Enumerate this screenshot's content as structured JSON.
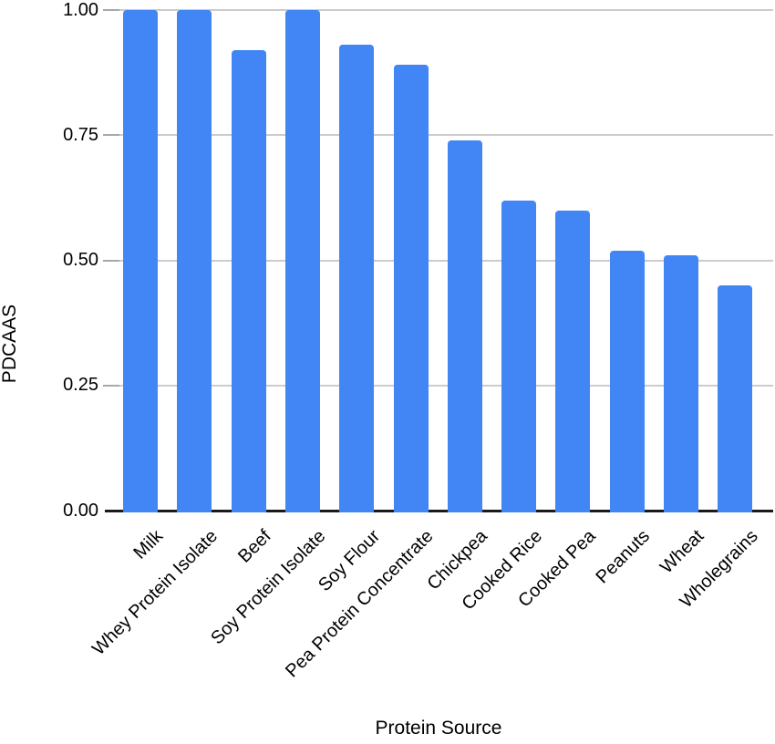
{
  "figure": {
    "background": "#ffffff"
  },
  "chart_data": {
    "type": "bar",
    "title": "",
    "xlabel": "Protein Source",
    "ylabel": "PDCAAS",
    "categories": [
      "Milk",
      "Whey Protein Isolate",
      "Beef",
      "Soy Protein Isolate",
      "Soy Flour",
      "Pea Protein Concentrate",
      "Chickpea",
      "Cooked Rice",
      "Cooked Pea",
      "Peanuts",
      "Wheat",
      "Wholegrains"
    ],
    "values": [
      1.0,
      1.0,
      0.92,
      1.0,
      0.93,
      0.89,
      0.74,
      0.62,
      0.6,
      0.52,
      0.51,
      0.45
    ],
    "ylim": [
      0,
      1
    ],
    "yticks": [
      0,
      0.25,
      0.5,
      0.75,
      1
    ],
    "ytick_labels": [
      "0.00",
      "0.25",
      "0.50",
      "0.75",
      "1.00"
    ],
    "grid": true,
    "legend_position": "none",
    "colors": {
      "bar": "#4285F4",
      "gridline": "#cccccc",
      "tick": "#a8a8a8",
      "axis_line": "#1a1a1a",
      "text": "#000000"
    }
  }
}
